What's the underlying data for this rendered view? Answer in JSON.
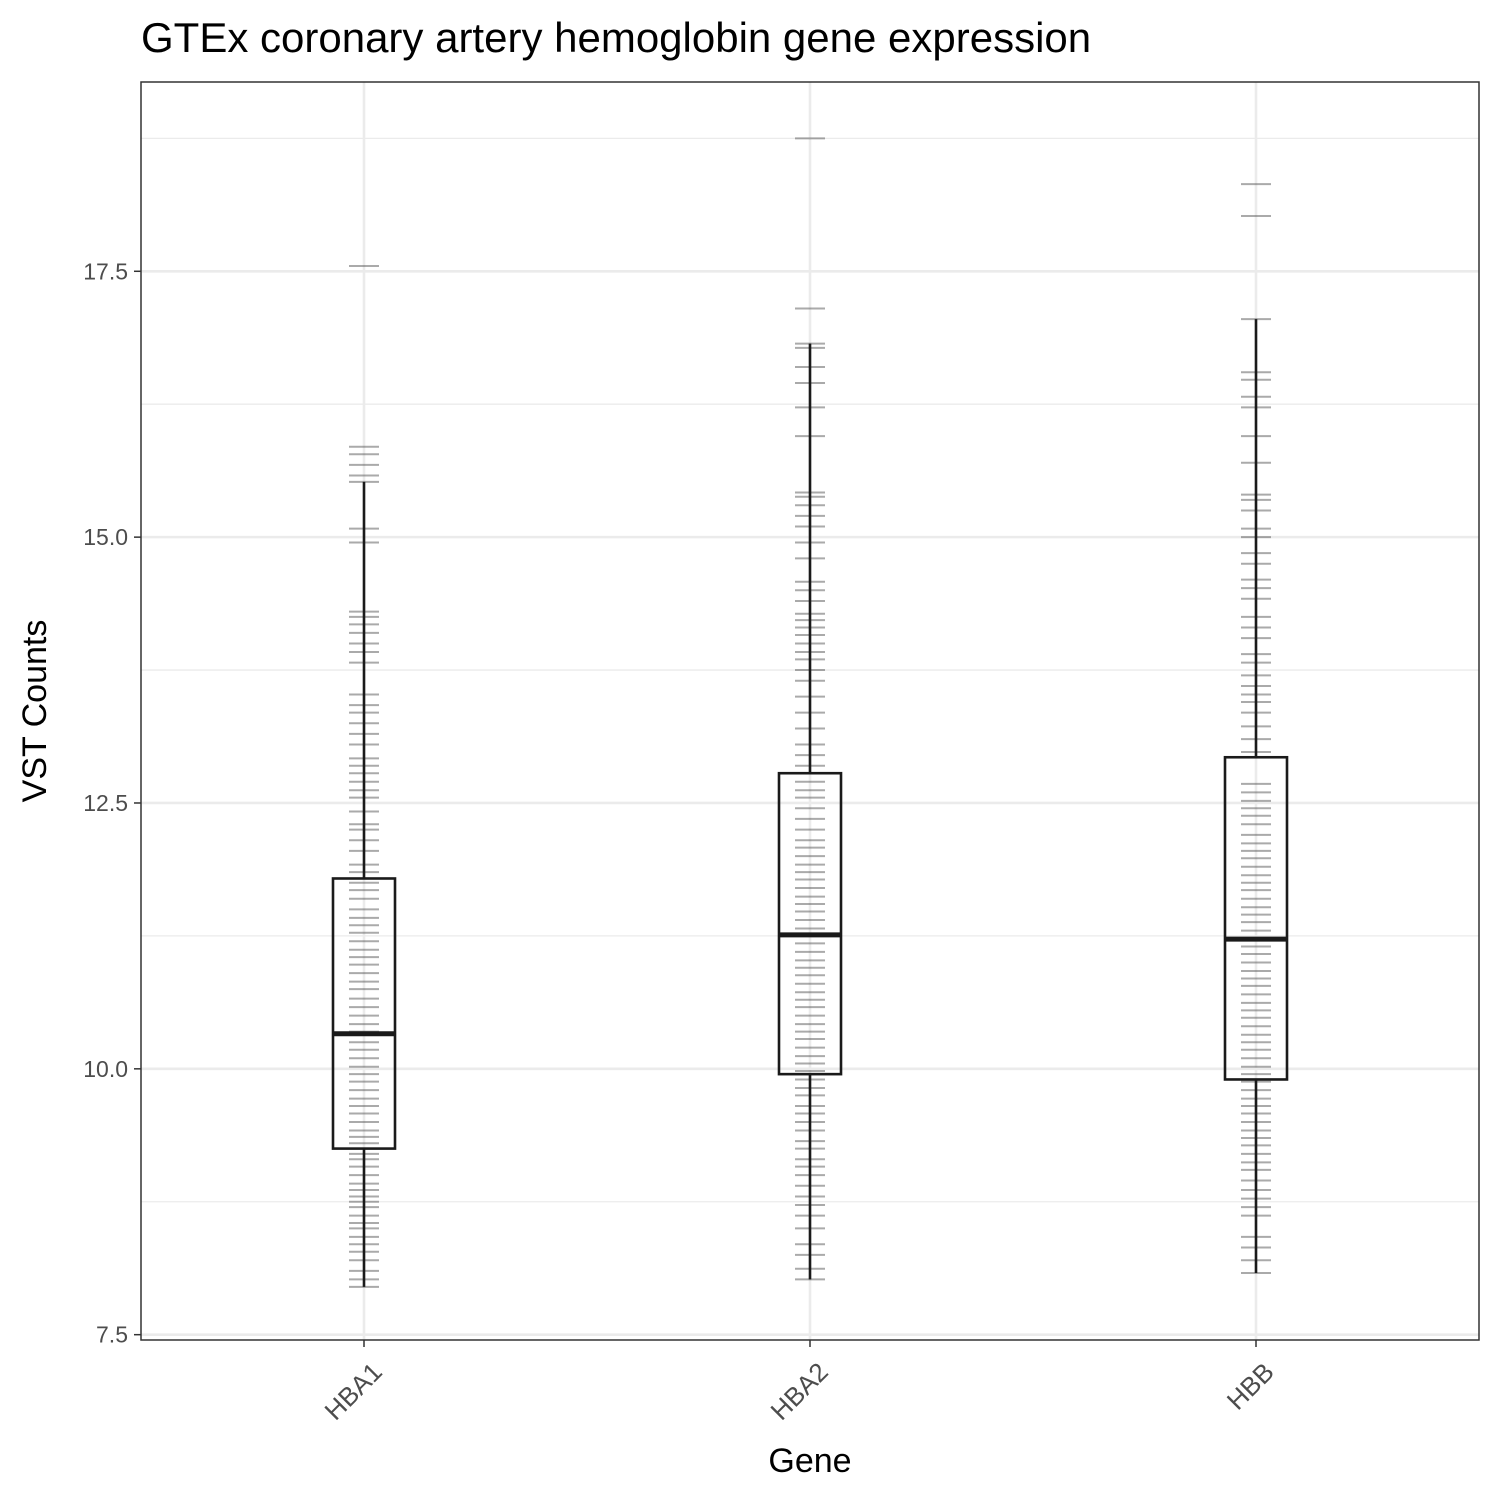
{
  "chart_data": {
    "type": "box",
    "title": "GTEx coronary artery hemoglobin gene expression",
    "xlabel": "Gene",
    "ylabel": "VST Counts",
    "categories": [
      "HBA1",
      "HBA2",
      "HBB"
    ],
    "ylim": [
      7.45,
      19.28
    ],
    "yticks": [
      7.5,
      10.0,
      12.5,
      15.0,
      17.5
    ],
    "ytick_labels": [
      "7.5",
      "10.0",
      "12.5",
      "15.0",
      "17.5"
    ],
    "grid": true,
    "legend": "none",
    "colors": {
      "box_line": "#1a1a1a",
      "box_fill": "#ffffff",
      "rug": "#555555",
      "grid": "#ebebeb",
      "panel_border": "#333333"
    },
    "boxes": [
      {
        "category": "HBA1",
        "whisker_low": 7.95,
        "q1": 9.25,
        "median": 10.33,
        "q3": 11.79,
        "whisker_high": 15.52,
        "points": [
          7.95,
          8.02,
          8.1,
          8.2,
          8.28,
          8.35,
          8.42,
          8.5,
          8.55,
          8.62,
          8.7,
          8.75,
          8.8,
          8.86,
          8.92,
          9.0,
          9.08,
          9.15,
          9.2,
          9.3,
          9.36,
          9.42,
          9.5,
          9.58,
          9.65,
          9.72,
          9.8,
          9.88,
          9.95,
          10.02,
          10.1,
          10.18,
          10.25,
          10.35,
          10.42,
          10.5,
          10.58,
          10.66,
          10.75,
          10.82,
          10.9,
          10.98,
          11.05,
          11.12,
          11.2,
          11.28,
          11.35,
          11.42,
          11.5,
          11.6,
          11.68,
          11.75,
          11.85,
          11.92,
          12.05,
          12.15,
          12.25,
          12.3,
          12.42,
          12.55,
          12.62,
          12.7,
          12.78,
          12.85,
          12.92,
          13.05,
          13.15,
          13.25,
          13.35,
          13.42,
          13.52,
          13.82,
          13.92,
          14.0,
          14.1,
          14.18,
          14.25,
          14.3,
          14.95,
          15.08,
          15.52,
          15.58,
          15.68,
          15.78,
          15.85,
          17.55
        ]
      },
      {
        "category": "HBA2",
        "whisker_low": 8.02,
        "q1": 9.95,
        "median": 11.26,
        "q3": 12.78,
        "whisker_high": 16.82,
        "points": [
          8.02,
          8.12,
          8.25,
          8.35,
          8.5,
          8.62,
          8.72,
          8.8,
          8.9,
          9.0,
          9.08,
          9.15,
          9.25,
          9.32,
          9.42,
          9.5,
          9.58,
          9.65,
          9.75,
          9.82,
          9.9,
          9.98,
          10.05,
          10.12,
          10.2,
          10.28,
          10.35,
          10.42,
          10.5,
          10.58,
          10.65,
          10.72,
          10.8,
          10.88,
          10.95,
          11.02,
          11.1,
          11.18,
          11.25,
          11.32,
          11.4,
          11.48,
          11.55,
          11.62,
          11.7,
          11.78,
          11.85,
          11.92,
          12.0,
          12.08,
          12.15,
          12.25,
          12.35,
          12.45,
          12.55,
          12.62,
          12.7,
          12.85,
          12.95,
          13.05,
          13.2,
          13.35,
          13.5,
          13.65,
          13.75,
          13.85,
          13.92,
          14.0,
          14.08,
          14.15,
          14.22,
          14.28,
          14.4,
          14.5,
          14.58,
          14.8,
          14.95,
          15.1,
          15.2,
          15.3,
          15.38,
          15.42,
          15.95,
          16.22,
          16.45,
          16.6,
          16.78,
          16.82,
          17.15,
          18.75
        ]
      },
      {
        "category": "HBB",
        "whisker_low": 8.08,
        "q1": 9.9,
        "median": 11.22,
        "q3": 12.93,
        "whisker_high": 17.05,
        "points": [
          8.08,
          8.2,
          8.32,
          8.42,
          8.62,
          8.7,
          8.78,
          8.86,
          8.95,
          9.05,
          9.12,
          9.2,
          9.28,
          9.35,
          9.42,
          9.5,
          9.58,
          9.65,
          9.72,
          9.8,
          9.88,
          9.95,
          10.02,
          10.1,
          10.18,
          10.25,
          10.32,
          10.4,
          10.48,
          10.55,
          10.62,
          10.7,
          10.78,
          10.85,
          10.92,
          11.0,
          11.08,
          11.15,
          11.3,
          11.38,
          11.45,
          11.52,
          11.6,
          11.68,
          11.75,
          11.82,
          11.9,
          11.98,
          12.05,
          12.12,
          12.2,
          12.3,
          12.38,
          12.45,
          12.52,
          12.6,
          12.68,
          12.98,
          13.1,
          13.22,
          13.35,
          13.45,
          13.52,
          13.6,
          13.7,
          13.82,
          13.9,
          14.05,
          14.15,
          14.25,
          14.42,
          14.52,
          14.6,
          14.75,
          14.85,
          15.0,
          15.08,
          15.25,
          15.35,
          15.4,
          15.7,
          15.95,
          16.22,
          16.32,
          16.48,
          16.55,
          17.05,
          18.02,
          18.32
        ]
      }
    ]
  }
}
